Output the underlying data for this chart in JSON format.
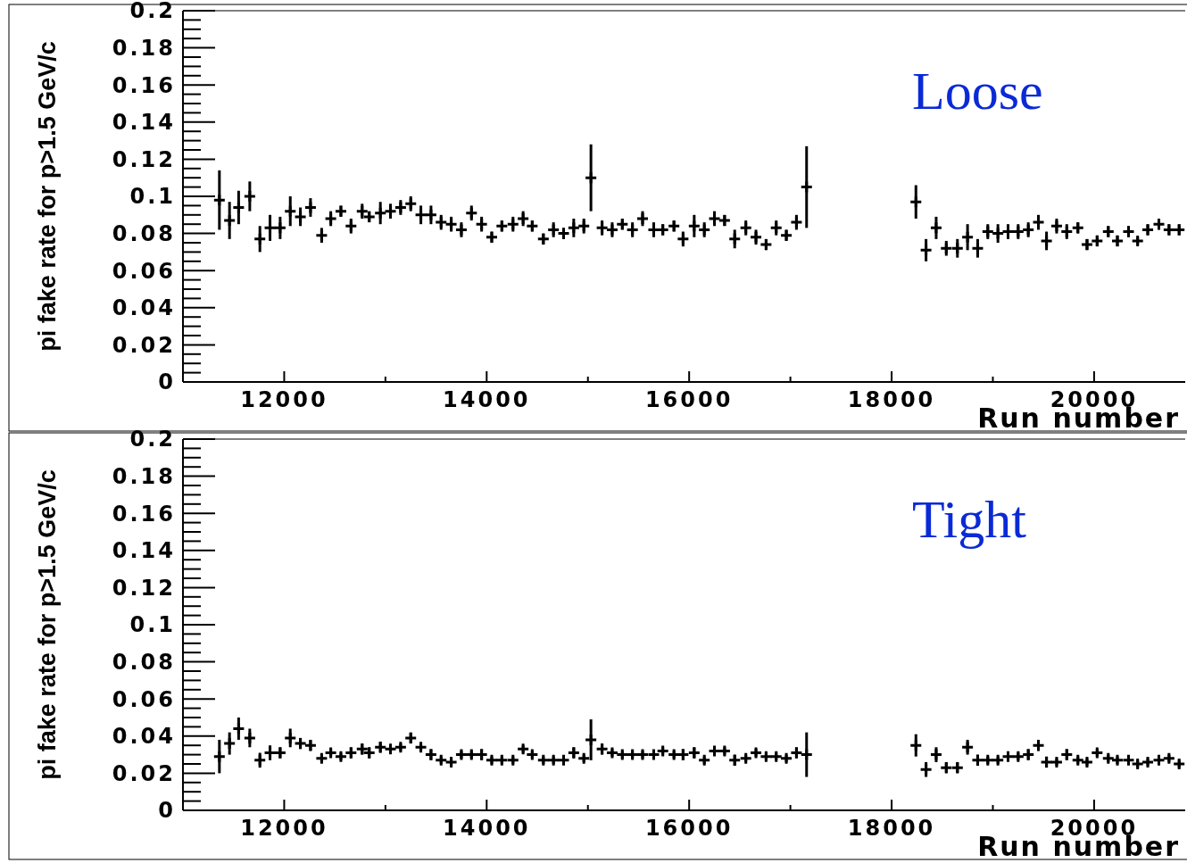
{
  "chart_data": [
    {
      "type": "scatter",
      "marker": "cross",
      "xlabel": "Run number",
      "ylabel": "pi fake rate for p>1.5 GeV/c",
      "annotations": [
        "Loose"
      ],
      "xlim": [
        11000,
        20900
      ],
      "xticks": [
        12000,
        14000,
        16000,
        18000,
        20000
      ],
      "ylim": [
        0,
        0.2
      ],
      "yticks": [
        0,
        0.02,
        0.04,
        0.06,
        0.08,
        0.1,
        0.12,
        0.14,
        0.16,
        0.18,
        0.2
      ],
      "series": [
        {
          "color": "#000000",
          "x": [
            11360,
            11460,
            11550,
            11660,
            11760,
            11860,
            11960,
            12060,
            12160,
            12260,
            12370,
            12460,
            12560,
            12660,
            12770,
            12840,
            12950,
            13050,
            13150,
            13250,
            13350,
            13450,
            13550,
            13650,
            13750,
            13850,
            13950,
            14050,
            14150,
            14260,
            14360,
            14450,
            14560,
            14660,
            14760,
            14860,
            14960,
            15030,
            15140,
            15240,
            15340,
            15440,
            15540,
            15650,
            15740,
            15850,
            15940,
            16050,
            16150,
            16250,
            16350,
            16450,
            16560,
            16660,
            16760,
            16860,
            16960,
            17060,
            17160,
            18240,
            18340,
            18440,
            18540,
            18650,
            18750,
            18850,
            18950,
            19050,
            19150,
            19250,
            19350,
            19450,
            19530,
            19630,
            19730,
            19840,
            19930,
            20030,
            20140,
            20230,
            20340,
            20430,
            20530,
            20640,
            20740,
            20840
          ],
          "values": [
            0.098,
            0.087,
            0.094,
            0.1,
            0.077,
            0.083,
            0.083,
            0.092,
            0.089,
            0.094,
            0.079,
            0.088,
            0.092,
            0.084,
            0.092,
            0.089,
            0.091,
            0.092,
            0.094,
            0.096,
            0.09,
            0.09,
            0.086,
            0.085,
            0.082,
            0.091,
            0.085,
            0.078,
            0.084,
            0.085,
            0.088,
            0.084,
            0.077,
            0.082,
            0.08,
            0.083,
            0.084,
            0.11,
            0.083,
            0.082,
            0.085,
            0.082,
            0.088,
            0.082,
            0.082,
            0.084,
            0.077,
            0.084,
            0.082,
            0.088,
            0.087,
            0.077,
            0.083,
            0.078,
            0.074,
            0.083,
            0.079,
            0.086,
            0.105,
            0.097,
            0.071,
            0.083,
            0.072,
            0.072,
            0.078,
            0.072,
            0.081,
            0.08,
            0.081,
            0.081,
            0.082,
            0.086,
            0.076,
            0.084,
            0.081,
            0.083,
            0.074,
            0.076,
            0.081,
            0.076,
            0.081,
            0.076,
            0.082,
            0.085,
            0.082,
            0.082
          ],
          "errors": [
            0.016,
            0.01,
            0.009,
            0.008,
            0.007,
            0.007,
            0.006,
            0.008,
            0.005,
            0.005,
            0.004,
            0.004,
            0.003,
            0.004,
            0.004,
            0.003,
            0.006,
            0.004,
            0.004,
            0.004,
            0.005,
            0.005,
            0.004,
            0.004,
            0.004,
            0.004,
            0.004,
            0.003,
            0.003,
            0.004,
            0.004,
            0.003,
            0.003,
            0.004,
            0.003,
            0.005,
            0.004,
            0.018,
            0.004,
            0.004,
            0.003,
            0.004,
            0.004,
            0.004,
            0.003,
            0.003,
            0.004,
            0.006,
            0.004,
            0.004,
            0.003,
            0.005,
            0.004,
            0.004,
            0.003,
            0.004,
            0.003,
            0.004,
            0.022,
            0.009,
            0.006,
            0.006,
            0.004,
            0.005,
            0.007,
            0.005,
            0.004,
            0.005,
            0.004,
            0.004,
            0.004,
            0.004,
            0.005,
            0.004,
            0.004,
            0.003,
            0.003,
            0.003,
            0.003,
            0.003,
            0.003,
            0.002,
            0.003,
            0.003,
            0.003,
            0.003
          ]
        }
      ]
    },
    {
      "type": "scatter",
      "marker": "cross",
      "xlabel": "Run number",
      "ylabel": "pi fake rate for p>1.5 GeV/c",
      "annotations": [
        "Tight"
      ],
      "xlim": [
        11000,
        20900
      ],
      "xticks": [
        12000,
        14000,
        16000,
        18000,
        20000
      ],
      "ylim": [
        0,
        0.2
      ],
      "yticks": [
        0,
        0.02,
        0.04,
        0.06,
        0.08,
        0.1,
        0.12,
        0.14,
        0.16,
        0.18,
        0.2
      ],
      "series": [
        {
          "color": "#000000",
          "x": [
            11360,
            11460,
            11550,
            11660,
            11760,
            11860,
            11960,
            12060,
            12160,
            12260,
            12370,
            12460,
            12560,
            12660,
            12770,
            12840,
            12950,
            13050,
            13150,
            13250,
            13350,
            13450,
            13550,
            13650,
            13750,
            13850,
            13950,
            14050,
            14150,
            14260,
            14360,
            14450,
            14560,
            14660,
            14760,
            14860,
            14960,
            15030,
            15140,
            15240,
            15340,
            15440,
            15540,
            15650,
            15740,
            15850,
            15940,
            16050,
            16150,
            16250,
            16350,
            16450,
            16560,
            16660,
            16760,
            16860,
            16960,
            17060,
            17160,
            18240,
            18340,
            18440,
            18540,
            18650,
            18750,
            18850,
            18950,
            19050,
            19150,
            19250,
            19350,
            19450,
            19530,
            19630,
            19730,
            19840,
            19930,
            20030,
            20140,
            20230,
            20340,
            20430,
            20530,
            20640,
            20740,
            20840
          ],
          "values": [
            0.029,
            0.036,
            0.044,
            0.039,
            0.027,
            0.031,
            0.031,
            0.039,
            0.036,
            0.035,
            0.028,
            0.031,
            0.029,
            0.031,
            0.033,
            0.031,
            0.034,
            0.033,
            0.034,
            0.039,
            0.034,
            0.03,
            0.027,
            0.026,
            0.03,
            0.03,
            0.03,
            0.027,
            0.027,
            0.027,
            0.033,
            0.03,
            0.027,
            0.027,
            0.027,
            0.031,
            0.028,
            0.038,
            0.033,
            0.031,
            0.03,
            0.03,
            0.03,
            0.03,
            0.032,
            0.03,
            0.03,
            0.031,
            0.027,
            0.032,
            0.032,
            0.027,
            0.028,
            0.031,
            0.029,
            0.029,
            0.028,
            0.031,
            0.03,
            0.035,
            0.022,
            0.03,
            0.023,
            0.023,
            0.034,
            0.027,
            0.027,
            0.027,
            0.029,
            0.029,
            0.03,
            0.035,
            0.026,
            0.026,
            0.03,
            0.027,
            0.026,
            0.031,
            0.028,
            0.027,
            0.027,
            0.025,
            0.026,
            0.027,
            0.028,
            0.025
          ],
          "errors": [
            0.009,
            0.006,
            0.006,
            0.005,
            0.004,
            0.004,
            0.003,
            0.005,
            0.003,
            0.003,
            0.002,
            0.002,
            0.002,
            0.003,
            0.003,
            0.003,
            0.003,
            0.002,
            0.002,
            0.003,
            0.002,
            0.003,
            0.002,
            0.002,
            0.002,
            0.002,
            0.003,
            0.002,
            0.002,
            0.002,
            0.002,
            0.002,
            0.002,
            0.002,
            0.002,
            0.003,
            0.002,
            0.011,
            0.003,
            0.002,
            0.002,
            0.002,
            0.002,
            0.002,
            0.002,
            0.002,
            0.003,
            0.003,
            0.002,
            0.002,
            0.002,
            0.003,
            0.002,
            0.002,
            0.002,
            0.002,
            0.002,
            0.003,
            0.012,
            0.006,
            0.004,
            0.004,
            0.003,
            0.003,
            0.004,
            0.003,
            0.002,
            0.002,
            0.002,
            0.002,
            0.003,
            0.003,
            0.003,
            0.002,
            0.003,
            0.002,
            0.002,
            0.002,
            0.002,
            0.002,
            0.002,
            0.002,
            0.002,
            0.002,
            0.002,
            0.002
          ]
        }
      ]
    }
  ]
}
